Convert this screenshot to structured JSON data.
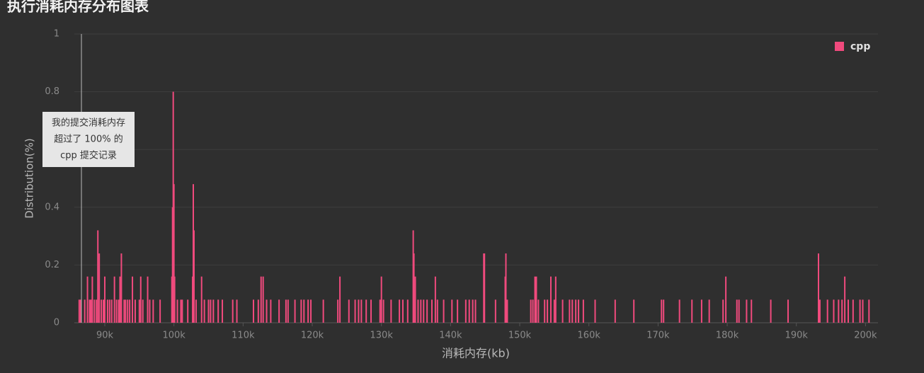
{
  "chart_data": {
    "type": "bar",
    "title": "执行消耗内存分布图表",
    "xlabel": "消耗内存(kb)",
    "ylabel": "Distribution(%)",
    "series": [
      {
        "name": "cpp",
        "color": "#f04a7d",
        "x": [
          86300,
          86500,
          87100,
          87500,
          87800,
          88000,
          88200,
          88500,
          88800,
          89000,
          89200,
          89500,
          89800,
          90000,
          90400,
          90700,
          91000,
          91400,
          91700,
          92000,
          92200,
          92400,
          92800,
          93000,
          93300,
          93600,
          94000,
          94400,
          95000,
          95200,
          95500,
          96200,
          96500,
          97000,
          98000,
          99700,
          99800,
          99900,
          100000,
          100100,
          100500,
          101000,
          101200,
          102000,
          102700,
          102800,
          102900,
          103200,
          104000,
          104400,
          105000,
          105300,
          105700,
          106400,
          107000,
          108500,
          109100,
          111500,
          112200,
          112600,
          112900,
          113400,
          114000,
          115200,
          116200,
          116500,
          117500,
          118400,
          118800,
          119400,
          119800,
          121600,
          123700,
          124000,
          125300,
          126200,
          126700,
          127100,
          127800,
          128500,
          129800,
          130000,
          130300,
          131400,
          132600,
          133100,
          133800,
          134600,
          134700,
          134900,
          135300,
          135700,
          136100,
          136600,
          137300,
          137800,
          138100,
          139000,
          140200,
          141000,
          142200,
          142700,
          143200,
          143600,
          144800,
          144900,
          146500,
          147900,
          148000,
          148200,
          151600,
          151900,
          152200,
          152400,
          152700,
          153600,
          154000,
          154500,
          155000,
          155200,
          156200,
          157200,
          157600,
          158100,
          158500,
          159200,
          160900,
          163800,
          166500,
          170500,
          170800,
          173100,
          174900,
          176300,
          177400,
          179400,
          179800,
          181400,
          181700,
          182800,
          183500,
          186300,
          188800,
          193200,
          193400,
          194500,
          195400,
          196100,
          196600,
          197000,
          197500,
          198200,
          199200,
          199600,
          200500
        ],
        "values": [
          0.08,
          0.08,
          0.08,
          0.16,
          0.08,
          0.08,
          0.16,
          0.08,
          0.08,
          0.32,
          0.24,
          0.08,
          0.08,
          0.16,
          0.08,
          0.08,
          0.08,
          0.16,
          0.08,
          0.08,
          0.16,
          0.24,
          0.08,
          0.08,
          0.08,
          0.08,
          0.16,
          0.08,
          0.08,
          0.16,
          0.08,
          0.16,
          0.08,
          0.08,
          0.08,
          0.16,
          0.4,
          0.8,
          0.48,
          0.16,
          0.08,
          0.08,
          0.08,
          0.08,
          0.16,
          0.48,
          0.32,
          0.08,
          0.16,
          0.08,
          0.08,
          0.08,
          0.08,
          0.08,
          0.08,
          0.08,
          0.08,
          0.08,
          0.08,
          0.16,
          0.16,
          0.08,
          0.08,
          0.08,
          0.08,
          0.08,
          0.08,
          0.08,
          0.08,
          0.08,
          0.08,
          0.08,
          0.08,
          0.16,
          0.08,
          0.08,
          0.08,
          0.08,
          0.08,
          0.08,
          0.08,
          0.16,
          0.08,
          0.08,
          0.08,
          0.08,
          0.08,
          0.32,
          0.24,
          0.16,
          0.08,
          0.08,
          0.08,
          0.08,
          0.08,
          0.16,
          0.08,
          0.08,
          0.08,
          0.08,
          0.08,
          0.08,
          0.08,
          0.08,
          0.24,
          0.24,
          0.08,
          0.16,
          0.24,
          0.08,
          0.08,
          0.08,
          0.16,
          0.16,
          0.08,
          0.08,
          0.08,
          0.16,
          0.08,
          0.16,
          0.08,
          0.08,
          0.08,
          0.08,
          0.08,
          0.08,
          0.08,
          0.08,
          0.08,
          0.08,
          0.08,
          0.08,
          0.08,
          0.08,
          0.08,
          0.08,
          0.16,
          0.08,
          0.08,
          0.08,
          0.08,
          0.08,
          0.08,
          0.24,
          0.08,
          0.08,
          0.08,
          0.08,
          0.08,
          0.16,
          0.08,
          0.08,
          0.08,
          0.08,
          0.08
        ]
      }
    ],
    "xlim": [
      85600,
      201800
    ],
    "xticks": [
      {
        "value": 90000,
        "label": "90k"
      },
      {
        "value": 100000,
        "label": "100k"
      },
      {
        "value": 110000,
        "label": "110k"
      },
      {
        "value": 120000,
        "label": "120k"
      },
      {
        "value": 130000,
        "label": "130k"
      },
      {
        "value": 140000,
        "label": "140k"
      },
      {
        "value": 150000,
        "label": "150k"
      },
      {
        "value": 160000,
        "label": "160k"
      },
      {
        "value": 170000,
        "label": "170k"
      },
      {
        "value": 180000,
        "label": "180k"
      },
      {
        "value": 190000,
        "label": "190k"
      },
      {
        "value": 200000,
        "label": "200k"
      }
    ],
    "ylim": [
      0,
      1
    ],
    "yticks": [
      0,
      0.2,
      0.4,
      0.6,
      0.8,
      1
    ],
    "grid": true,
    "legend": "top-right"
  },
  "tooltip": {
    "lines": [
      "我的提交消耗内存",
      "超过了 100% 的",
      "cpp 提交记录"
    ]
  }
}
